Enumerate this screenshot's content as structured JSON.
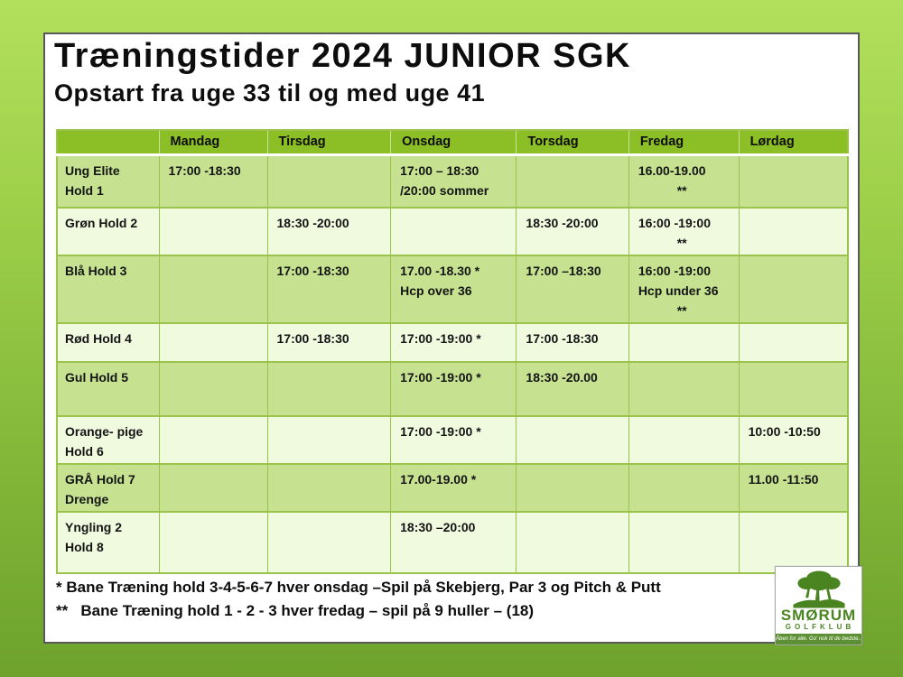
{
  "header": {
    "title": "Træningstider 2024 JUNIOR SGK",
    "subtitle": "Opstart fra uge 33 til og med uge 41"
  },
  "table": {
    "columns": [
      "",
      "Mandag",
      "Tirsdag",
      "Onsdag",
      "Torsdag",
      "Fredag",
      "Lørdag"
    ],
    "rows": [
      {
        "label": [
          "Ung Elite",
          "Hold 1"
        ],
        "cells": [
          [
            "17:00 -18:30"
          ],
          [],
          [
            "17:00 – 18:30",
            "/20:00 sommer"
          ],
          [],
          [
            "16.00-19.00",
            "**"
          ],
          []
        ]
      },
      {
        "label": [
          "Grøn Hold 2"
        ],
        "cells": [
          [],
          [
            "18:30 -20:00"
          ],
          [],
          [
            "18:30 -20:00"
          ],
          [
            "16:00 -19:00",
            "**"
          ],
          []
        ]
      },
      {
        "label": [
          "Blå Hold 3"
        ],
        "cells": [
          [],
          [
            "17:00 -18:30"
          ],
          [
            "17.00 -18.30 *",
            "Hcp over 36"
          ],
          [
            "17:00 –18:30"
          ],
          [
            "16:00 -19:00",
            "Hcp under 36",
            "**"
          ],
          []
        ]
      },
      {
        "label": [
          "Rød Hold 4"
        ],
        "cells": [
          [],
          [
            "17:00 -18:30"
          ],
          [
            "17:00 -19:00 *"
          ],
          [
            "17:00 -18:30"
          ],
          [],
          []
        ]
      },
      {
        "label": [
          "Gul Hold 5"
        ],
        "cells": [
          [],
          [],
          [
            "17:00 -19:00 *"
          ],
          [
            "18:30 -20.00"
          ],
          [],
          []
        ]
      },
      {
        "label": [
          "Orange- pige",
          "Hold 6"
        ],
        "cells": [
          [],
          [],
          [
            "17:00 -19:00 *"
          ],
          [],
          [],
          [
            "10:00 -10:50"
          ]
        ]
      },
      {
        "label": [
          "GRÅ Hold 7",
          "Drenge"
        ],
        "cells": [
          [],
          [],
          [
            "17.00-19.00 *"
          ],
          [],
          [],
          [
            "11.00 -11:50"
          ]
        ]
      },
      {
        "label": [
          "Yngling 2",
          "Hold 8"
        ],
        "cells": [
          [],
          [],
          [
            "18:30 –20:00"
          ],
          [],
          [],
          []
        ]
      }
    ]
  },
  "notes": [
    "* Bane Træning hold 3-4-5-6-7 hver onsdag –Spil på Skebjerg, Par 3 og Pitch & Putt",
    "**   Bane Træning hold 1 - 2 - 3 hver fredag – spil på 9 huller – (18)"
  ],
  "logo": {
    "name": "SMØRUM",
    "subtitle": "GOLFKLUB",
    "tagline": "Åben for alle. Go' nok til de bedste..."
  },
  "colors": {
    "bg-top": "#B3E05C",
    "bg-bottom": "#6DA22C",
    "header-green": "#8CBE26",
    "band-green": "#C6E290",
    "band-pale": "#F0FADE",
    "border-green": "#9BC24B",
    "logo-green": "#4A8420"
  }
}
